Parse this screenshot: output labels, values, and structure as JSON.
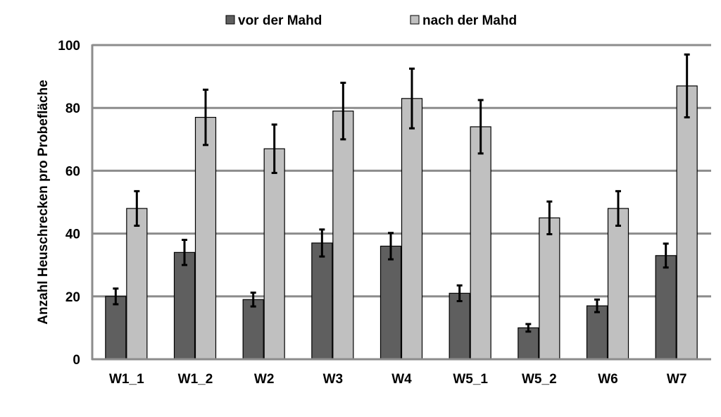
{
  "chart_data": {
    "type": "bar",
    "ylabel": "Anzahl Heuschrecken pro Probefläche",
    "xlabel": "",
    "ylim": [
      0,
      100
    ],
    "yticks": [
      0,
      20,
      40,
      60,
      80,
      100
    ],
    "grid": true,
    "legend_position": "top",
    "categories": [
      "W1_1",
      "W1_2",
      "W2",
      "W3",
      "W4",
      "W5_1",
      "W5_2",
      "W6",
      "W7"
    ],
    "series": [
      {
        "name": "vor der Mahd",
        "color": "#5f5f5f",
        "values": [
          20,
          34,
          19,
          37,
          36,
          21,
          10,
          17,
          33
        ],
        "errors": [
          2.5,
          4,
          2.2,
          4.3,
          4.2,
          2.5,
          1.2,
          2,
          3.8
        ]
      },
      {
        "name": "nach der Mahd",
        "color": "#c0c0c0",
        "values": [
          48,
          77,
          67,
          79,
          83,
          74,
          45,
          48,
          87
        ],
        "errors": [
          5.5,
          8.8,
          7.7,
          9,
          9.5,
          8.5,
          5.2,
          5.5,
          10
        ]
      }
    ]
  }
}
